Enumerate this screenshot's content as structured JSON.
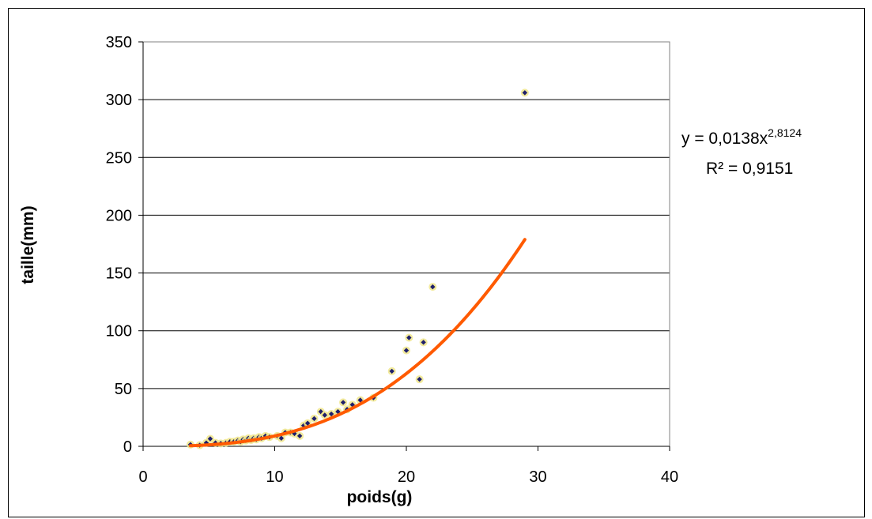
{
  "chart_data": {
    "type": "scatter",
    "title": "",
    "xlabel": "poids(g)",
    "ylabel": "taille(mm)",
    "xlim": [
      0,
      40
    ],
    "ylim": [
      0,
      350
    ],
    "xticks": [
      0,
      10,
      20,
      30,
      40
    ],
    "yticks": [
      0,
      50,
      100,
      150,
      200,
      250,
      300,
      350
    ],
    "grid": "horizontal",
    "colors": {
      "points": "#1f1f6b",
      "point_halo": "#f0e68c",
      "trendline": "#ff5a00"
    },
    "series": [
      {
        "type": "scatter",
        "points": [
          [
            3.6,
            1.5
          ],
          [
            4.3,
            1
          ],
          [
            4.8,
            3
          ],
          [
            5.1,
            6.5
          ],
          [
            5.5,
            3
          ],
          [
            5.9,
            2.5
          ],
          [
            6.3,
            3
          ],
          [
            6.6,
            4
          ],
          [
            6.9,
            4
          ],
          [
            7.2,
            5
          ],
          [
            7.4,
            4
          ],
          [
            7.6,
            6
          ],
          [
            7.8,
            5
          ],
          [
            8.0,
            7
          ],
          [
            8.2,
            5.5
          ],
          [
            8.4,
            7
          ],
          [
            8.6,
            6
          ],
          [
            8.8,
            8
          ],
          [
            9.0,
            7
          ],
          [
            9.3,
            9
          ],
          [
            9.6,
            8
          ],
          [
            10.2,
            9
          ],
          [
            10.5,
            7
          ],
          [
            10.8,
            12
          ],
          [
            11.2,
            12
          ],
          [
            11.5,
            11
          ],
          [
            11.9,
            9
          ],
          [
            12.2,
            18
          ],
          [
            12.5,
            20
          ],
          [
            13.0,
            24
          ],
          [
            13.5,
            30
          ],
          [
            13.8,
            27
          ],
          [
            14.3,
            28
          ],
          [
            14.8,
            30
          ],
          [
            15.2,
            38
          ],
          [
            15.5,
            32
          ],
          [
            15.9,
            36
          ],
          [
            16.5,
            40
          ],
          [
            17.5,
            42
          ],
          [
            18.9,
            65
          ],
          [
            20.0,
            83
          ],
          [
            20.2,
            94
          ],
          [
            21.0,
            58
          ],
          [
            21.3,
            90
          ],
          [
            22.0,
            138
          ],
          [
            29.0,
            306
          ]
        ]
      }
    ],
    "trendline": {
      "type": "power",
      "coefficient": 0.0138,
      "exponent": 2.8124,
      "x_range": [
        3.6,
        29
      ],
      "equation_prefix": "y = 0,0138x",
      "equation_exponent": "2,8124",
      "r_squared_text": "R² = 0,9151"
    }
  }
}
